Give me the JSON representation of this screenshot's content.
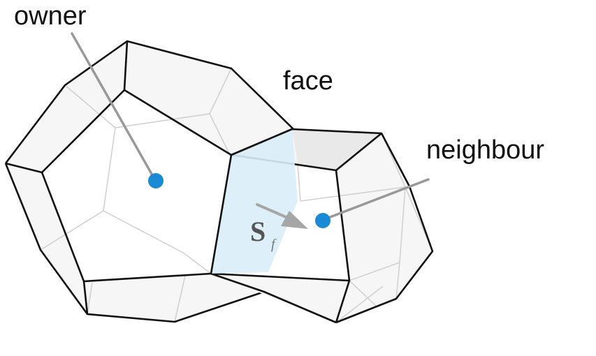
{
  "labels": {
    "owner": "owner",
    "face": "face",
    "neighbour": "neighbour"
  },
  "face_vector": {
    "symbol": "S",
    "subscript": "f"
  },
  "colors": {
    "face_fill": "#d9eef8",
    "cell_centre": "#1a8ad4",
    "leader_line": "#999999",
    "arrow": "#a6a6a6",
    "edge": "#111111",
    "hidden_edge": "#c8c8c8"
  }
}
